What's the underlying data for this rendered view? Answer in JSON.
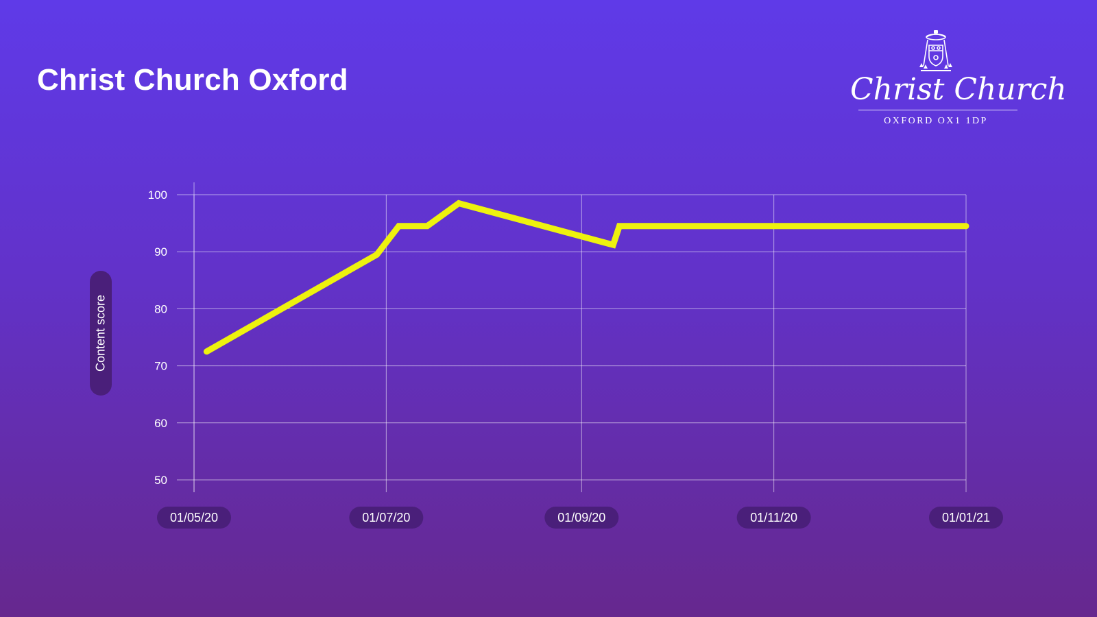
{
  "title": "Christ Church Oxford",
  "logo": {
    "name": "Christ Church",
    "subtitle": "OXFORD OX1 1DP"
  },
  "colors": {
    "line": "#eef20e",
    "grid": "#ffffff",
    "pill": "#4a1f7a"
  },
  "chart_data": {
    "type": "line",
    "title": "",
    "xlabel": "",
    "ylabel": "Content score",
    "x_type": "date",
    "x_ticks": [
      "01/05/20",
      "01/07/20",
      "01/09/20",
      "01/11/20",
      "01/01/21"
    ],
    "x_tick_dates": [
      "2020-05-01",
      "2020-07-01",
      "2020-09-01",
      "2020-11-01",
      "2021-01-01"
    ],
    "ylim": [
      50,
      100
    ],
    "y_ticks": [
      50,
      60,
      70,
      80,
      90,
      100
    ],
    "grid": true,
    "legend": "none",
    "series": [
      {
        "x": [
          "2020-05-05",
          "2020-06-28",
          "2020-07-05",
          "2020-07-14",
          "2020-07-24",
          "2020-09-11",
          "2020-09-13",
          "2021-01-01"
        ],
        "y": [
          72.5,
          89.5,
          94.5,
          94.5,
          98.5,
          91.2,
          94.5,
          94.5
        ]
      }
    ]
  }
}
